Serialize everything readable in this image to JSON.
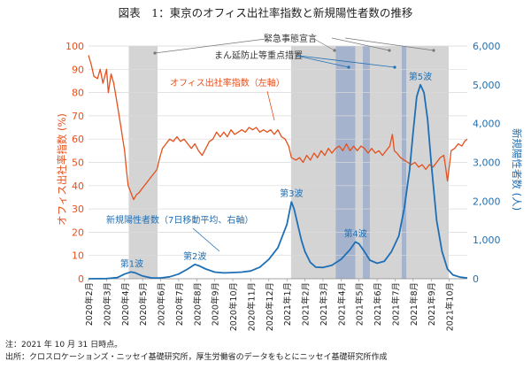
{
  "figure": {
    "title": "図表　1：東京のオフィス出社率指数と新規陽性者数の推移",
    "note": "注：2021 年 10 月 31 日時点。",
    "source": "出所：クロスロケーションズ・ニッセイ基礎研究所，厚生労働省のデータをもとにニッセイ基礎研究所作成"
  },
  "colors": {
    "office": "#e5501c",
    "cases": "#1f6fb4",
    "emergency": "#d4d4d4",
    "manen": "#a6b3cd",
    "axis_left": "#e5501c",
    "axis_right": "#1f6fb4"
  },
  "chart_data": {
    "type": "line",
    "title": "",
    "x_labels": [
      "2020年2月",
      "2020年3月",
      "2020年4月",
      "2020年5月",
      "2020年6月",
      "2020年7月",
      "2020年8月",
      "2020年9月",
      "2020年10月",
      "2020年11月",
      "2020年12月",
      "2021年1月",
      "2021年2月",
      "2021年3月",
      "2021年4月",
      "2021年5月",
      "2021年6月",
      "2021年7月",
      "2021年8月",
      "2021年9月",
      "2021年10月"
    ],
    "left_axis": {
      "label": "オフィス出社率指数 (%)",
      "min": 0,
      "max": 100,
      "ticks": [
        "0",
        "10",
        "20",
        "30",
        "40",
        "50",
        "60",
        "70",
        "80",
        "90",
        "100"
      ]
    },
    "right_axis": {
      "label": "新規陽性者数 (人)",
      "min": 0,
      "max": 6000,
      "ticks": [
        "0",
        "1,000",
        "2,000",
        "3,000",
        "4,000",
        "5,000",
        "6,000"
      ]
    },
    "periods": [
      {
        "type": "emergency",
        "start": 2.23,
        "end": 3.83
      },
      {
        "type": "emergency",
        "start": 11.23,
        "end": 13.7
      },
      {
        "type": "manen",
        "start": 13.7,
        "end": 14.8
      },
      {
        "type": "emergency",
        "start": 14.8,
        "end": 15.2
      },
      {
        "type": "manen",
        "start": 15.2,
        "end": 15.6
      },
      {
        "type": "emergency",
        "start": 15.6,
        "end": 17.37
      },
      {
        "type": "manen",
        "start": 17.37,
        "end": 17.63
      },
      {
        "type": "emergency",
        "start": 17.63,
        "end": 19.97
      }
    ],
    "series": [
      {
        "name": "オフィス出社率指数（左軸）",
        "axis": "left",
        "points": [
          [
            0,
            96
          ],
          [
            0.15,
            92
          ],
          [
            0.3,
            87
          ],
          [
            0.5,
            86
          ],
          [
            0.65,
            90
          ],
          [
            0.8,
            84
          ],
          [
            1.0,
            90
          ],
          [
            1.1,
            80
          ],
          [
            1.25,
            88
          ],
          [
            1.4,
            84
          ],
          [
            1.55,
            77
          ],
          [
            1.7,
            70
          ],
          [
            1.8,
            65
          ],
          [
            1.9,
            60
          ],
          [
            2.0,
            55
          ],
          [
            2.1,
            47
          ],
          [
            2.2,
            40
          ],
          [
            2.35,
            37
          ],
          [
            2.5,
            34
          ],
          [
            2.65,
            36
          ],
          [
            2.8,
            37
          ],
          [
            3.0,
            39
          ],
          [
            3.2,
            41
          ],
          [
            3.4,
            43
          ],
          [
            3.6,
            45
          ],
          [
            3.8,
            47
          ],
          [
            3.95,
            52
          ],
          [
            4.1,
            56
          ],
          [
            4.3,
            58
          ],
          [
            4.5,
            60
          ],
          [
            4.7,
            59
          ],
          [
            4.9,
            61
          ],
          [
            5.1,
            59
          ],
          [
            5.3,
            60
          ],
          [
            5.5,
            58
          ],
          [
            5.7,
            56
          ],
          [
            5.9,
            58
          ],
          [
            6.1,
            55
          ],
          [
            6.3,
            53
          ],
          [
            6.5,
            56
          ],
          [
            6.7,
            59
          ],
          [
            6.9,
            60
          ],
          [
            7.1,
            63
          ],
          [
            7.3,
            61
          ],
          [
            7.5,
            63
          ],
          [
            7.7,
            61
          ],
          [
            7.9,
            64
          ],
          [
            8.1,
            62
          ],
          [
            8.3,
            63
          ],
          [
            8.5,
            64
          ],
          [
            8.7,
            63
          ],
          [
            8.9,
            65
          ],
          [
            9.1,
            64
          ],
          [
            9.3,
            65
          ],
          [
            9.5,
            63
          ],
          [
            9.7,
            64
          ],
          [
            9.9,
            63
          ],
          [
            10.1,
            64
          ],
          [
            10.3,
            62
          ],
          [
            10.5,
            64
          ],
          [
            10.7,
            61
          ],
          [
            10.9,
            60
          ],
          [
            11.1,
            57
          ],
          [
            11.25,
            52
          ],
          [
            11.5,
            51
          ],
          [
            11.7,
            52
          ],
          [
            11.9,
            50
          ],
          [
            12.1,
            53
          ],
          [
            12.3,
            51
          ],
          [
            12.5,
            54
          ],
          [
            12.7,
            52
          ],
          [
            12.9,
            55
          ],
          [
            13.1,
            53
          ],
          [
            13.3,
            56
          ],
          [
            13.5,
            54
          ],
          [
            13.7,
            56
          ],
          [
            13.9,
            57
          ],
          [
            14.1,
            55
          ],
          [
            14.3,
            58
          ],
          [
            14.5,
            55
          ],
          [
            14.7,
            57
          ],
          [
            14.9,
            55
          ],
          [
            15.1,
            57
          ],
          [
            15.3,
            56
          ],
          [
            15.5,
            54
          ],
          [
            15.7,
            56
          ],
          [
            15.9,
            54
          ],
          [
            16.1,
            55
          ],
          [
            16.3,
            53
          ],
          [
            16.5,
            55
          ],
          [
            16.7,
            57
          ],
          [
            16.85,
            62
          ],
          [
            16.95,
            55
          ],
          [
            17.1,
            54
          ],
          [
            17.3,
            52
          ],
          [
            17.5,
            51
          ],
          [
            17.7,
            50
          ],
          [
            17.9,
            49
          ],
          [
            18.1,
            50
          ],
          [
            18.3,
            48
          ],
          [
            18.5,
            49
          ],
          [
            18.7,
            47
          ],
          [
            18.9,
            49
          ],
          [
            19.1,
            48
          ],
          [
            19.3,
            50
          ],
          [
            19.5,
            52
          ],
          [
            19.7,
            53
          ],
          [
            19.8,
            48
          ],
          [
            19.9,
            42
          ],
          [
            20.0,
            48
          ],
          [
            20.1,
            55
          ],
          [
            20.3,
            56
          ],
          [
            20.5,
            58
          ],
          [
            20.7,
            57
          ],
          [
            20.85,
            59
          ],
          [
            21.0,
            60
          ]
        ]
      },
      {
        "name": "新規陽性者数（7日移動平均、右軸）",
        "axis": "right",
        "points": [
          [
            0,
            0
          ],
          [
            1.0,
            5
          ],
          [
            1.6,
            30
          ],
          [
            2.0,
            120
          ],
          [
            2.35,
            175
          ],
          [
            2.6,
            150
          ],
          [
            3.0,
            70
          ],
          [
            3.5,
            20
          ],
          [
            4.0,
            20
          ],
          [
            4.5,
            50
          ],
          [
            5.0,
            120
          ],
          [
            5.5,
            250
          ],
          [
            5.9,
            370
          ],
          [
            6.1,
            340
          ],
          [
            6.5,
            250
          ],
          [
            7.0,
            170
          ],
          [
            7.5,
            150
          ],
          [
            8.0,
            160
          ],
          [
            8.5,
            170
          ],
          [
            9.0,
            200
          ],
          [
            9.5,
            300
          ],
          [
            10.0,
            500
          ],
          [
            10.5,
            800
          ],
          [
            11.0,
            1400
          ],
          [
            11.25,
            1980
          ],
          [
            11.4,
            1800
          ],
          [
            11.6,
            1400
          ],
          [
            11.8,
            1000
          ],
          [
            12.0,
            700
          ],
          [
            12.3,
            420
          ],
          [
            12.6,
            300
          ],
          [
            13.0,
            290
          ],
          [
            13.5,
            350
          ],
          [
            14.0,
            500
          ],
          [
            14.5,
            750
          ],
          [
            14.8,
            950
          ],
          [
            15.0,
            900
          ],
          [
            15.3,
            700
          ],
          [
            15.6,
            480
          ],
          [
            16.0,
            400
          ],
          [
            16.4,
            450
          ],
          [
            16.8,
            700
          ],
          [
            17.2,
            1100
          ],
          [
            17.5,
            1800
          ],
          [
            17.8,
            2800
          ],
          [
            18.0,
            3800
          ],
          [
            18.2,
            4700
          ],
          [
            18.4,
            5000
          ],
          [
            18.6,
            4800
          ],
          [
            18.8,
            4100
          ],
          [
            19.0,
            3000
          ],
          [
            19.3,
            1500
          ],
          [
            19.6,
            700
          ],
          [
            19.9,
            250
          ],
          [
            20.2,
            100
          ],
          [
            20.6,
            40
          ],
          [
            21.0,
            20
          ]
        ]
      }
    ],
    "annotations": {
      "emergency": "緊急事態宣言",
      "manen": "まん延防止等重点措置",
      "office_label": "オフィス出社率指数（左軸）",
      "cases_label": "新規陽性者数（7日移動平均、右軸）",
      "waves": [
        {
          "label": "第1波",
          "x": 2.4,
          "y": 175
        },
        {
          "label": "第2波",
          "x": 5.9,
          "y": 370
        },
        {
          "label": "第3波",
          "x": 11.25,
          "y": 1980
        },
        {
          "label": "第4波",
          "x": 14.8,
          "y": 950
        },
        {
          "label": "第5波",
          "x": 18.4,
          "y": 5000
        }
      ]
    }
  }
}
